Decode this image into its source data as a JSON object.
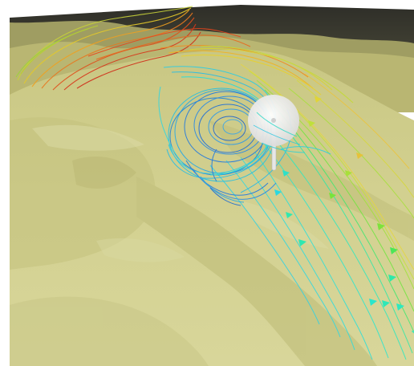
{
  "scene": {
    "subject": "wind-flow-over-terrain",
    "colors": {
      "background": "#ffffff",
      "sky": "#3a3a32",
      "terrain_light": "#d3d191",
      "terrain_mid": "#c6c47f",
      "terrain_shadow": "#aeab67",
      "turbine": "#eeeeee",
      "flow_slow": "#1f78e0",
      "flow_medium_low": "#25c8e6",
      "flow_medium": "#2ee8b8",
      "flow_medium_high": "#8fe83a",
      "flow_high": "#f5c518",
      "flow_fastest": "#e0321a"
    },
    "icons": [
      "wind-turbine-icon"
    ]
  }
}
